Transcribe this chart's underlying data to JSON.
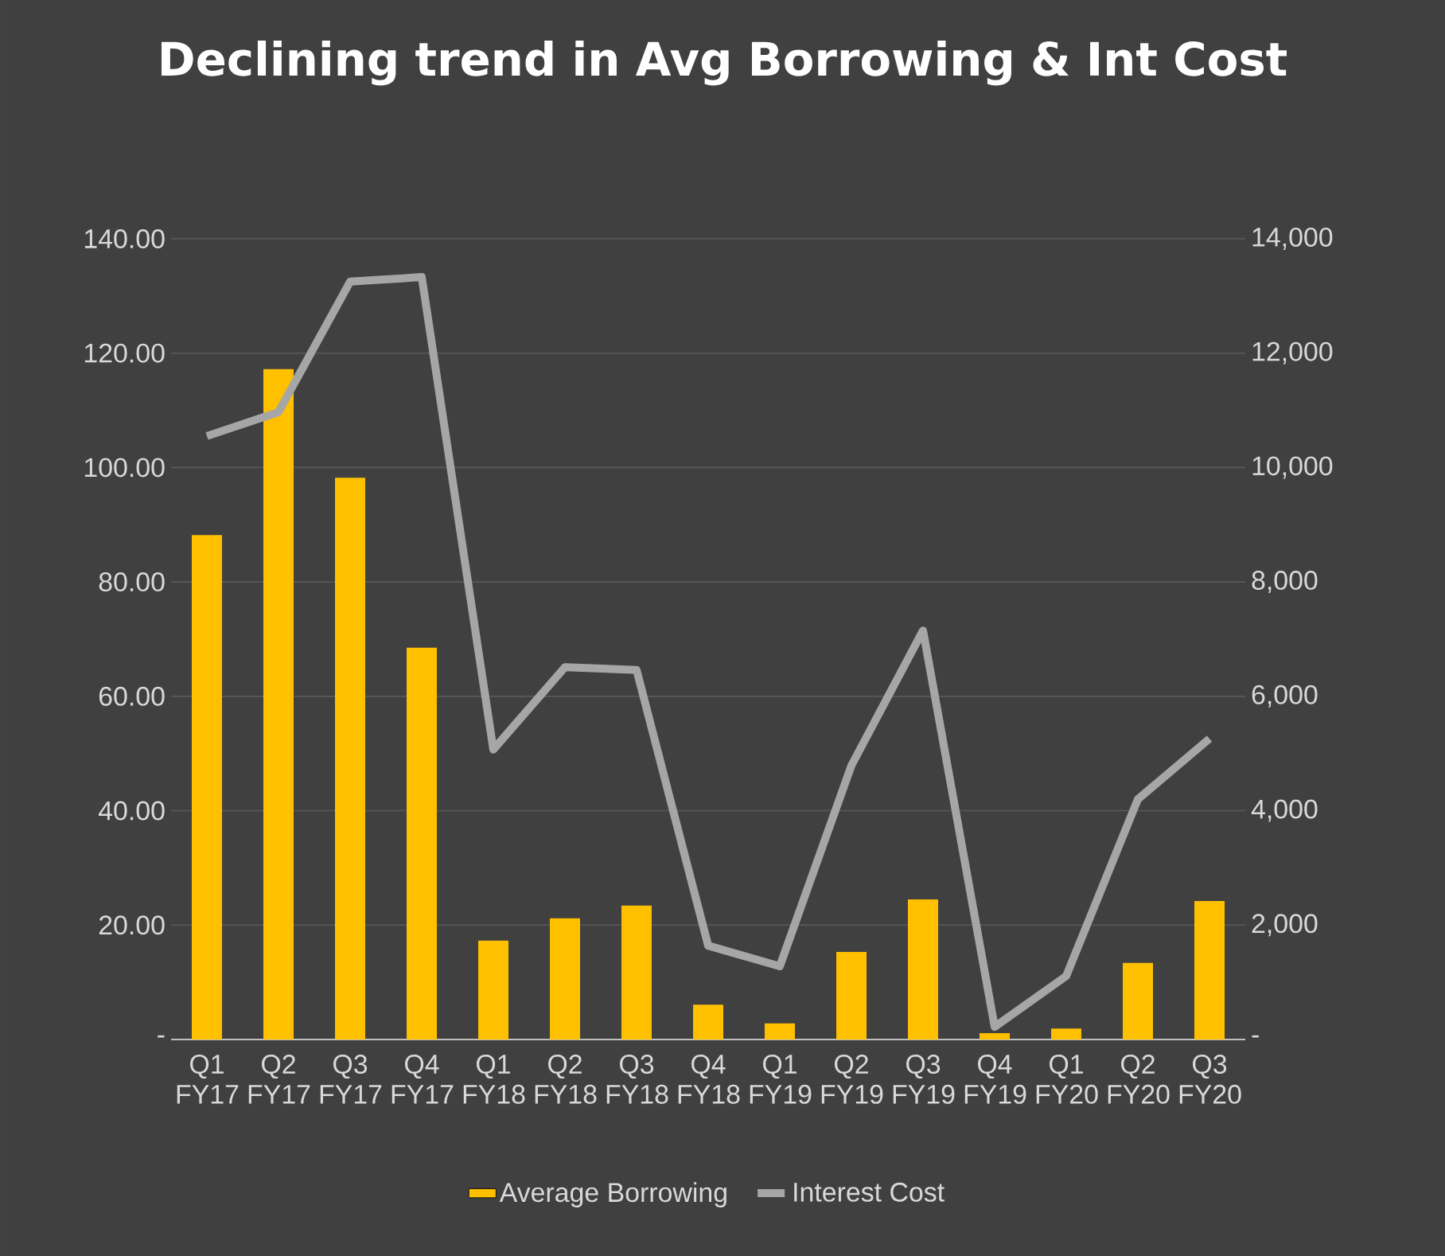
{
  "chart_data": {
    "type": "bar",
    "title": "Declining trend in Avg Borrowing & Int Cost",
    "categories": [
      "Q1 FY17",
      "Q2 FY17",
      "Q3 FY17",
      "Q4 FY17",
      "Q1 FY18",
      "Q2 FY18",
      "Q3 FY18",
      "Q4 FY18",
      "Q1 FY19",
      "Q2 FY19",
      "Q3 FY19",
      "Q4 FY19",
      "Q1 FY20",
      "Q2 FY20",
      "Q3 FY20"
    ],
    "series": [
      {
        "name": "Average Borrowing",
        "color": "#ffc000",
        "values": [
          88.2,
          117.2,
          98.2,
          68.5,
          17.3,
          21.2,
          23.4,
          6.1,
          2.8,
          15.3,
          24.5,
          1.1,
          1.9,
          13.4,
          24.2
        ]
      },
      {
        "name": "Interest Cost",
        "type": "line",
        "axis": "y2",
        "color": "#a6a6a6",
        "values": [
          10550,
          10970,
          13250,
          13330,
          5070,
          6510,
          6460,
          1640,
          1280,
          4790,
          7150,
          220,
          1110,
          4200,
          5260
        ]
      }
    ],
    "ylim": [
      0,
      140
    ],
    "yticks": [
      {
        "value": 0,
        "label": "-"
      },
      {
        "value": 20,
        "label": "20.00"
      },
      {
        "value": 40,
        "label": "40.00"
      },
      {
        "value": 60,
        "label": "60.00"
      },
      {
        "value": 80,
        "label": "80.00"
      },
      {
        "value": 100,
        "label": "100.00"
      },
      {
        "value": 120,
        "label": "120.00"
      },
      {
        "value": 140,
        "label": "140.00"
      }
    ],
    "y2lim": [
      0,
      14000
    ],
    "y2ticks": [
      {
        "value": 0,
        "label": "-"
      },
      {
        "value": 2000,
        "label": "2,000"
      },
      {
        "value": 4000,
        "label": "4,000"
      },
      {
        "value": 6000,
        "label": "6,000"
      },
      {
        "value": 8000,
        "label": "8,000"
      },
      {
        "value": 10000,
        "label": "10,000"
      },
      {
        "value": 12000,
        "label": "12,000"
      },
      {
        "value": 14000,
        "label": "14,000"
      }
    ],
    "grid": "y",
    "legend": "bottom"
  }
}
